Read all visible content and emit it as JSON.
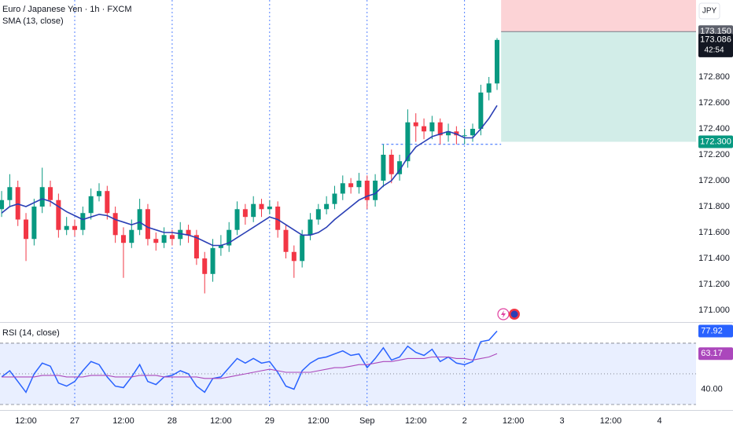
{
  "chart_data": [
    {
      "type": "candlestick",
      "title": "Euro / Japanese Yen · 1h · FXCM",
      "currency": "JPY",
      "open": [
        171.78,
        171.85,
        171.95,
        171.7,
        171.55,
        171.8,
        171.95,
        171.85,
        171.62,
        171.65,
        171.62,
        171.75,
        171.88,
        171.92,
        171.75,
        171.58,
        171.52,
        171.62,
        171.78,
        171.55,
        171.52,
        171.58,
        171.55,
        171.62,
        171.58,
        171.4,
        171.28,
        171.48,
        171.5,
        171.62,
        171.78,
        171.72,
        171.82,
        171.78,
        171.8,
        171.62,
        171.45,
        171.38,
        171.58,
        171.7,
        171.78,
        171.82,
        171.9,
        171.98,
        171.95,
        172.0,
        171.85,
        172.0,
        172.2,
        172.05,
        172.15,
        172.45,
        172.42,
        172.38,
        172.45,
        172.35,
        172.38,
        172.35,
        172.35,
        172.4,
        172.68,
        172.75
      ],
      "high": [
        171.92,
        172.05,
        172.0,
        171.75,
        171.86,
        172.1,
        172.0,
        171.9,
        171.72,
        171.7,
        171.8,
        171.94,
        171.98,
        171.96,
        171.8,
        171.64,
        171.7,
        171.86,
        171.82,
        171.6,
        171.64,
        171.62,
        171.68,
        171.66,
        171.62,
        171.45,
        171.55,
        171.58,
        171.68,
        171.84,
        171.82,
        171.88,
        171.86,
        171.85,
        171.84,
        171.66,
        171.5,
        171.62,
        171.75,
        171.82,
        171.88,
        171.96,
        172.04,
        172.02,
        172.06,
        172.04,
        172.05,
        172.28,
        172.24,
        172.2,
        172.55,
        172.52,
        172.48,
        172.5,
        172.48,
        172.44,
        172.42,
        172.4,
        172.44,
        172.74,
        172.8,
        173.1
      ],
      "low": [
        171.72,
        171.8,
        171.65,
        171.38,
        171.5,
        171.75,
        171.8,
        171.56,
        171.58,
        171.57,
        171.58,
        171.7,
        171.84,
        171.7,
        171.52,
        171.25,
        171.48,
        171.58,
        171.5,
        171.46,
        171.48,
        171.5,
        171.5,
        171.52,
        171.35,
        171.13,
        171.22,
        171.42,
        171.45,
        171.58,
        171.66,
        171.68,
        171.72,
        171.74,
        171.56,
        171.4,
        171.25,
        171.33,
        171.54,
        171.66,
        171.74,
        171.78,
        171.85,
        171.9,
        171.9,
        171.78,
        171.8,
        171.95,
        171.98,
        172.0,
        172.1,
        172.3,
        172.32,
        172.32,
        172.28,
        172.3,
        172.28,
        172.28,
        172.3,
        172.35,
        172.62,
        172.7
      ],
      "close": [
        171.85,
        171.95,
        171.7,
        171.55,
        171.8,
        171.95,
        171.85,
        171.62,
        171.65,
        171.62,
        171.75,
        171.88,
        171.92,
        171.75,
        171.58,
        171.52,
        171.62,
        171.78,
        171.55,
        171.52,
        171.58,
        171.55,
        171.62,
        171.58,
        171.4,
        171.28,
        171.48,
        171.5,
        171.62,
        171.78,
        171.72,
        171.82,
        171.78,
        171.8,
        171.62,
        171.45,
        171.38,
        171.58,
        171.7,
        171.78,
        171.82,
        171.9,
        171.98,
        171.95,
        172.0,
        171.85,
        172.0,
        172.2,
        172.05,
        172.15,
        172.45,
        172.42,
        172.38,
        172.45,
        172.35,
        172.38,
        172.35,
        172.35,
        172.4,
        172.68,
        172.75,
        173.086
      ],
      "up_color": "#089981",
      "down_color": "#f23645",
      "overlay": {
        "name": "SMA (13, close)",
        "color": "#2a3fb5",
        "values": [
          171.75,
          171.8,
          171.82,
          171.8,
          171.83,
          171.86,
          171.84,
          171.8,
          171.76,
          171.73,
          171.7,
          171.72,
          171.74,
          171.73,
          171.7,
          171.68,
          171.66,
          171.68,
          171.64,
          171.62,
          171.6,
          171.6,
          171.59,
          171.58,
          171.56,
          171.53,
          171.5,
          171.5,
          171.52,
          171.56,
          171.6,
          171.64,
          171.68,
          171.72,
          171.7,
          171.66,
          171.62,
          171.58,
          171.58,
          171.6,
          171.64,
          171.7,
          171.75,
          171.8,
          171.85,
          171.88,
          171.9,
          171.96,
          172.0,
          172.08,
          172.18,
          172.26,
          172.3,
          172.34,
          172.36,
          172.38,
          172.36,
          172.33,
          172.33,
          172.4,
          172.48,
          172.58
        ]
      },
      "countdown": "42:54",
      "xlim": [
        -0.2,
        85.5
      ],
      "xticks": [
        {
          "value": 3,
          "label": "12:00"
        },
        {
          "value": 9,
          "label": "27"
        },
        {
          "value": 15,
          "label": "12:00"
        },
        {
          "value": 21,
          "label": "28"
        },
        {
          "value": 27,
          "label": "12:00"
        },
        {
          "value": 33,
          "label": "29"
        },
        {
          "value": 39,
          "label": "12:00"
        },
        {
          "value": 45,
          "label": "Sep"
        },
        {
          "value": 51,
          "label": "12:00"
        },
        {
          "value": 57,
          "label": "2"
        },
        {
          "value": 63,
          "label": "12:00"
        },
        {
          "value": 69,
          "label": "3"
        },
        {
          "value": 75,
          "label": "12:00"
        },
        {
          "value": 81,
          "label": "4"
        }
      ],
      "day_separators": [
        9,
        21,
        33,
        45,
        57
      ],
      "ylim": [
        170.909,
        173.394
      ],
      "yticks": [
        {
          "value": 171.0,
          "label": "171.000"
        },
        {
          "value": 171.2,
          "label": "171.200"
        },
        {
          "value": 171.4,
          "label": "171.400"
        },
        {
          "value": 171.6,
          "label": "171.600"
        },
        {
          "value": 171.8,
          "label": "171.800"
        },
        {
          "value": 172.0,
          "label": "172.000"
        },
        {
          "value": 172.2,
          "label": "172.200"
        },
        {
          "value": 172.4,
          "label": "172.400"
        },
        {
          "value": 172.6,
          "label": "172.600"
        },
        {
          "value": 172.8,
          "label": "172.800"
        }
      ],
      "position": {
        "start": 61.5,
        "entry": {
          "value": 173.15,
          "label": "173.150"
        },
        "target": {
          "value": 172.3,
          "label": "172.300"
        },
        "stop": 173.45
      },
      "level": {
        "value": 172.28,
        "from": 46.8,
        "to": 61.5
      }
    },
    {
      "type": "line",
      "title": "RSI (14, close)",
      "ylim": [
        26.4,
        83.8
      ],
      "yticks": [
        {
          "value": 40,
          "label": "40.00"
        }
      ],
      "band": [
        30,
        70
      ],
      "midline": 50,
      "series": [
        {
          "color": "#2962ff",
          "values": [
            48,
            52,
            45,
            38,
            50,
            57,
            55,
            44,
            42,
            45,
            52,
            58,
            56,
            48,
            42,
            41,
            48,
            56,
            45,
            43,
            48,
            49,
            52,
            50,
            42,
            38,
            47,
            48,
            54,
            60,
            57,
            60,
            57,
            58,
            51,
            42,
            40,
            52,
            57,
            60,
            61,
            63,
            65,
            62,
            63,
            54,
            60,
            67,
            59,
            61,
            68,
            64,
            62,
            66,
            58,
            61,
            57,
            56,
            58,
            71,
            72,
            77.92
          ]
        },
        {
          "color": "#ab47bc",
          "values": [
            48,
            48,
            48,
            48,
            48,
            49,
            49,
            49,
            48,
            48,
            48,
            49,
            49,
            49,
            48,
            48,
            48,
            49,
            49,
            49,
            48,
            48,
            48,
            48,
            48,
            47,
            47,
            47,
            48,
            49,
            50,
            51,
            52,
            53,
            52,
            51,
            51,
            51,
            51,
            52,
            53,
            54,
            54,
            55,
            56,
            56,
            57,
            58,
            58,
            59,
            60,
            60,
            60,
            61,
            61,
            61,
            60,
            60,
            59,
            60,
            61,
            63.17
          ]
        }
      ]
    }
  ]
}
